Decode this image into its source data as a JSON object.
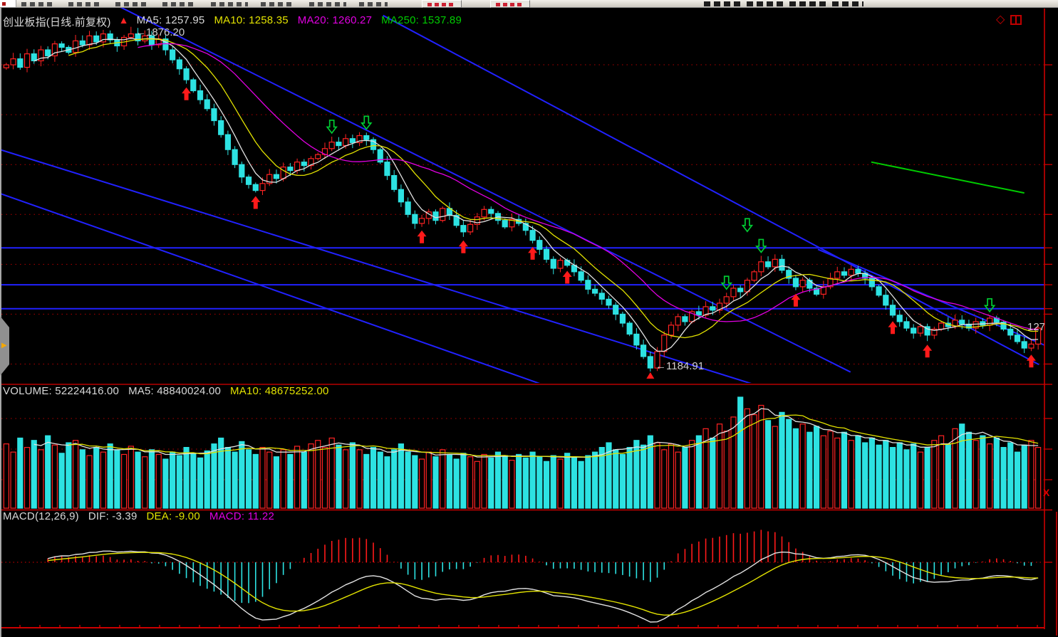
{
  "main_chart": {
    "title": "创业板指(日线.前复权)",
    "ma5": "MA5: 1257.95",
    "ma10": "MA10: 1258.35",
    "ma20": "MA20: 1260.27",
    "ma250": "MA250: 1537.89"
  },
  "volume_pane": {
    "volume": "VOLUME: 52224416.00",
    "ma5": "MA5: 48840024.00",
    "ma10": "MA10: 48675252.00"
  },
  "macd_pane": {
    "name": "MACD(12,26,9)",
    "dif": "DIF: -3.39",
    "dea": "DEA: -9.00",
    "macd": "MACD: 11.22"
  },
  "annotations": {
    "high": "1876.20",
    "low": "1184.91",
    "right_price_partial": "127"
  },
  "icons": {
    "up_arrow": "▲",
    "diamond": "◇",
    "flyout": "▶",
    "close_x": "X",
    "left_pointer": "←"
  },
  "colors": {
    "background": "#000000",
    "candle_up": "#ff2323",
    "candle_down": "#2de2e2",
    "ma5": "#e2e2e2",
    "ma10": "#e2e200",
    "ma20": "#e200e2",
    "ma250": "#00cc00",
    "trendline_blue": "#2121ff",
    "grid_red": "#b40000",
    "axis_red": "#cc0000",
    "separator_red": "#8a0000",
    "signal_buy": "#ff1a1a",
    "signal_sell": "#00cc33",
    "text_white": "#d9d9d9",
    "menu_bg": "#d8d4cc"
  },
  "chart_data": {
    "type": "candlestick",
    "title": "创业板指 daily K-line with MA5/MA10/MA20/MA250, VOLUME and MACD(12,26,9) panes",
    "price_axis": {
      "min": 1165,
      "max": 1890,
      "gridline_prices": [
        1800,
        1700,
        1600,
        1500,
        1400,
        1300,
        1200
      ]
    },
    "support_line_prices": [
      1433,
      1359,
      1311
    ],
    "trendlines": [
      {
        "c1": 16.0,
        "p1": 1919,
        "c2": 121.9,
        "p2": 1184
      },
      {
        "c1": 54.4,
        "p1": 1899,
        "c2": 149.1,
        "p2": 1199
      },
      {
        "c1": -0.9,
        "p1": 1630,
        "c2": 108.0,
        "p2": 1159
      },
      {
        "c1": -0.9,
        "p1": 1542,
        "c2": 77.4,
        "p2": 1159
      },
      {
        "c1": 117.2,
        "p1": 1430,
        "c2": 151.6,
        "p2": 1228
      }
    ],
    "ma250_segment": {
      "c1": 124.9,
      "p1": 1605,
      "c2": 147.0,
      "p2": 1543
    },
    "high_label": {
      "candle": 18,
      "value": 1876.2
    },
    "low_label": {
      "candle": 93,
      "value": 1184.91
    },
    "last_close": 1272,
    "closes": [
      1800,
      1812,
      1795,
      1822,
      1808,
      1830,
      1818,
      1842,
      1835,
      1825,
      1848,
      1840,
      1858,
      1846,
      1862,
      1850,
      1838,
      1855,
      1862,
      1848,
      1858,
      1840,
      1852,
      1830,
      1810,
      1792,
      1770,
      1748,
      1730,
      1712,
      1688,
      1660,
      1630,
      1600,
      1575,
      1560,
      1548,
      1562,
      1580,
      1572,
      1595,
      1588,
      1605,
      1598,
      1612,
      1620,
      1632,
      1645,
      1638,
      1652,
      1644,
      1658,
      1650,
      1630,
      1605,
      1578,
      1550,
      1525,
      1500,
      1482,
      1492,
      1505,
      1488,
      1512,
      1498,
      1478,
      1465,
      1480,
      1495,
      1510,
      1502,
      1488,
      1475,
      1490,
      1482,
      1468,
      1448,
      1430,
      1410,
      1392,
      1408,
      1398,
      1385,
      1368,
      1350,
      1342,
      1330,
      1318,
      1300,
      1282,
      1260,
      1238,
      1215,
      1192,
      1225,
      1258,
      1278,
      1295,
      1285,
      1305,
      1298,
      1315,
      1308,
      1322,
      1335,
      1352,
      1345,
      1368,
      1385,
      1405,
      1395,
      1410,
      1388,
      1372,
      1355,
      1368,
      1352,
      1340,
      1355,
      1372,
      1385,
      1378,
      1390,
      1382,
      1372,
      1355,
      1338,
      1318,
      1298,
      1285,
      1272,
      1262,
      1275,
      1258,
      1270,
      1282,
      1275,
      1288,
      1280,
      1272,
      1285,
      1278,
      1292,
      1284,
      1270,
      1258,
      1245,
      1232,
      1240,
      1272
    ],
    "volumes": [
      55,
      48,
      60,
      52,
      58,
      50,
      62,
      54,
      47,
      56,
      58,
      50,
      45,
      52,
      48,
      55,
      50,
      46,
      53,
      48,
      44,
      50,
      46,
      42,
      48,
      45,
      52,
      47,
      43,
      49,
      55,
      60,
      52,
      48,
      57,
      50,
      46,
      52,
      48,
      44,
      50,
      46,
      53,
      48,
      55,
      58,
      52,
      60,
      54,
      50,
      56,
      50,
      46,
      52,
      48,
      44,
      50,
      55,
      48,
      45,
      42,
      48,
      44,
      50,
      46,
      42,
      47,
      44,
      40,
      46,
      43,
      48,
      45,
      41,
      46,
      43,
      48,
      44,
      40,
      45,
      42,
      47,
      44,
      40,
      45,
      48,
      52,
      56,
      50,
      46,
      52,
      58,
      54,
      62,
      56,
      50,
      55,
      48,
      52,
      58,
      62,
      68,
      60,
      72,
      66,
      78,
      95,
      85,
      80,
      88,
      75,
      70,
      82,
      76,
      68,
      72,
      65,
      70,
      62,
      66,
      60,
      65,
      58,
      62,
      56,
      60,
      54,
      58,
      52,
      56,
      50,
      55,
      48,
      52,
      58,
      62,
      55,
      68,
      72,
      65,
      58,
      62,
      55,
      60,
      52,
      56,
      48,
      54,
      58,
      52
    ],
    "signals": [
      {
        "candle": 26,
        "type": "buy"
      },
      {
        "candle": 36,
        "type": "buy"
      },
      {
        "candle": 47,
        "type": "sell"
      },
      {
        "candle": 52,
        "type": "sell"
      },
      {
        "candle": 60,
        "type": "buy"
      },
      {
        "candle": 66,
        "type": "buy"
      },
      {
        "candle": 76,
        "type": "buy"
      },
      {
        "candle": 81,
        "type": "buy"
      },
      {
        "candle": 104,
        "type": "sell"
      },
      {
        "candle": 107,
        "type": "sell",
        "lift": 60
      },
      {
        "candle": 109,
        "type": "sell"
      },
      {
        "candle": 114,
        "type": "buy"
      },
      {
        "candle": 128,
        "type": "buy"
      },
      {
        "candle": 133,
        "type": "buy"
      },
      {
        "candle": 142,
        "type": "sell"
      },
      {
        "candle": 148,
        "type": "buy"
      }
    ],
    "indicators": {
      "ma5": 1257.95,
      "ma10": 1258.35,
      "ma20": 1260.27,
      "ma250": 1537.89,
      "volume": 52224416.0,
      "vol_ma5": 48840024.0,
      "vol_ma10": 48675252.0,
      "dif": -3.39,
      "dea": -9.0,
      "macd": 11.22
    }
  }
}
